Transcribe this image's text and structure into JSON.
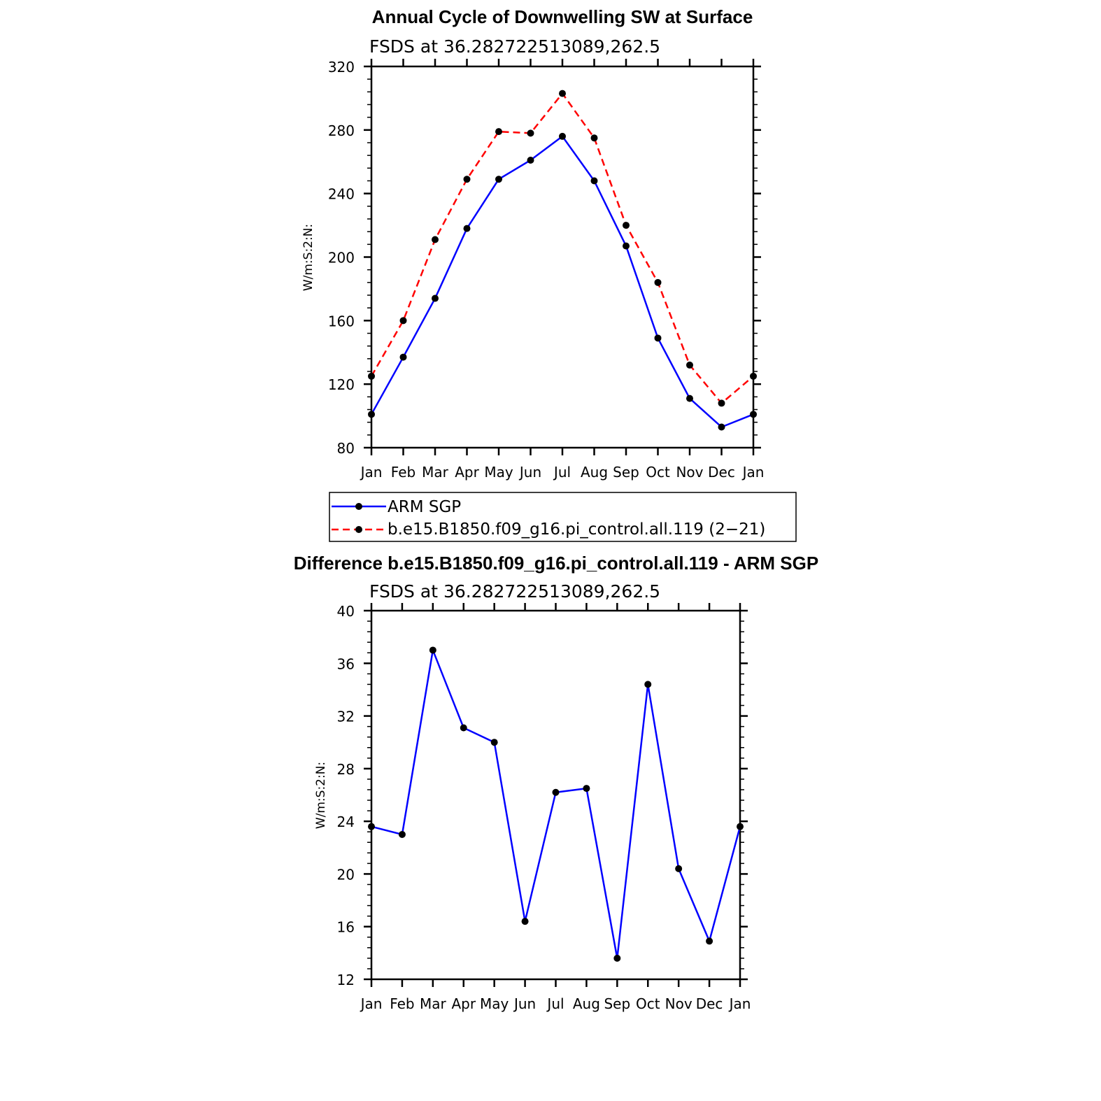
{
  "chart_data": [
    {
      "type": "line",
      "title": "Annual Cycle of Downwelling SW at Surface",
      "subtitle": "FSDS at 36.282722513089,262.5",
      "ylabel": "W/m:S:2:N:",
      "xlabel": "",
      "categories": [
        "Jan",
        "Feb",
        "Mar",
        "Apr",
        "May",
        "Jun",
        "Jul",
        "Aug",
        "Sep",
        "Oct",
        "Nov",
        "Dec",
        "Jan"
      ],
      "ylim": [
        80,
        320
      ],
      "yticks": [
        "80",
        "120",
        "160",
        "200",
        "240",
        "280",
        "320"
      ],
      "legend_position": "below",
      "series": [
        {
          "name": "ARM SGP",
          "color": "#0000ff",
          "dash": "solid",
          "values": [
            101,
            137,
            174,
            218,
            249,
            261,
            276,
            248,
            207,
            149,
            111,
            93,
            101
          ]
        },
        {
          "name": "b.e15.B1850.f09_g16.pi_control.all.119 (2−21)",
          "color": "#ff0000",
          "dash": "dashed",
          "values": [
            125,
            160,
            211,
            249,
            279,
            278,
            303,
            275,
            220,
            184,
            132,
            108,
            125
          ]
        }
      ]
    },
    {
      "type": "line",
      "title": "Difference b.e15.B1850.f09_g16.pi_control.all.119 - ARM SGP",
      "subtitle": "FSDS at 36.282722513089,262.5",
      "ylabel": "W/m:S:2:N:",
      "xlabel": "",
      "categories": [
        "Jan",
        "Feb",
        "Mar",
        "Apr",
        "May",
        "Jun",
        "Jul",
        "Aug",
        "Sep",
        "Oct",
        "Nov",
        "Dec",
        "Jan"
      ],
      "ylim": [
        12,
        40
      ],
      "yticks": [
        "12",
        "16",
        "20",
        "24",
        "28",
        "32",
        "36",
        "40"
      ],
      "series": [
        {
          "color": "#0000ff",
          "dash": "solid",
          "values": [
            23.6,
            23.0,
            37.0,
            31.1,
            30.0,
            16.4,
            26.2,
            26.5,
            13.6,
            34.4,
            20.4,
            14.9,
            23.6
          ]
        }
      ]
    }
  ]
}
